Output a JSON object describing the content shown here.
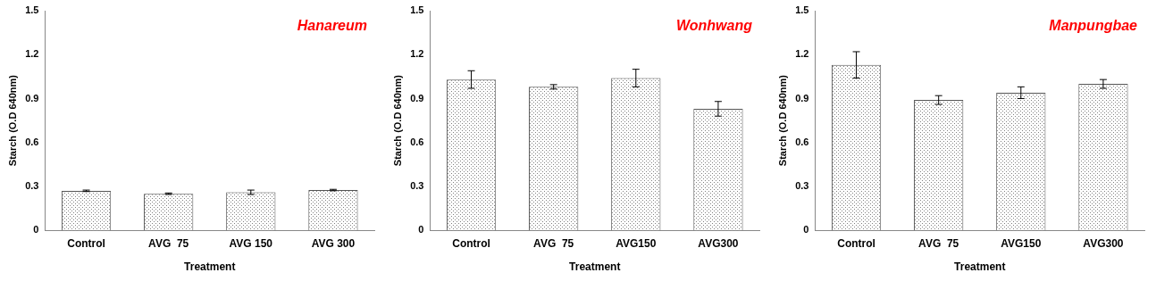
{
  "chart_data": [
    {
      "type": "bar",
      "title": "Hanareum",
      "x_label": "Treatment",
      "y_label": "Starch (O.D 640nm)",
      "categories": [
        "Control",
        "AVG  75",
        "AVG 150",
        "AVG 300"
      ],
      "values": [
        0.27,
        0.25,
        0.26,
        0.275
      ],
      "errors": [
        0.005,
        0.005,
        0.015,
        0.005
      ],
      "color": "#808080",
      "ylim": [
        0,
        1.5
      ],
      "yticks": [
        0,
        0.3,
        0.6,
        0.9,
        1.2,
        1.5
      ],
      "grid": false
    },
    {
      "type": "bar",
      "title": "Wonhwang",
      "x_label": "Treatment",
      "y_label": "Starch (O.D 640nm)",
      "categories": [
        "Control",
        "AVG  75",
        "AVG150",
        "AVG300"
      ],
      "values": [
        1.03,
        0.98,
        1.04,
        0.83
      ],
      "errors": [
        0.06,
        0.015,
        0.06,
        0.05
      ],
      "color": "#808080",
      "ylim": [
        0,
        1.5
      ],
      "yticks": [
        0,
        0.3,
        0.6,
        0.9,
        1.2,
        1.5
      ],
      "grid": false
    },
    {
      "type": "bar",
      "title": "Manpungbae",
      "x_label": "Treatment",
      "y_label": "Starch (O.D 640nm)",
      "categories": [
        "Control",
        "AVG  75",
        "AVG150",
        "AVG300"
      ],
      "values": [
        1.13,
        0.89,
        0.94,
        1.0
      ],
      "errors": [
        0.09,
        0.03,
        0.04,
        0.03
      ],
      "color": "#808080",
      "ylim": [
        0,
        1.5
      ],
      "yticks": [
        0,
        0.3,
        0.6,
        0.9,
        1.2,
        1.5
      ],
      "grid": false
    }
  ]
}
